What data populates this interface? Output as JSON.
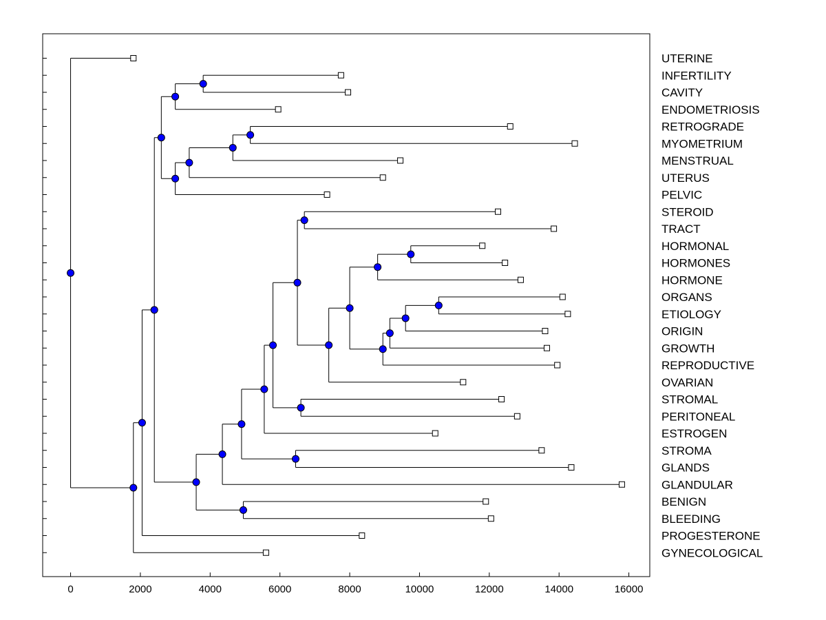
{
  "chart_data": {
    "type": "dendrogram",
    "xlim": [
      -800,
      16600
    ],
    "xticks": [
      0,
      2000,
      4000,
      6000,
      8000,
      10000,
      12000,
      14000,
      16000
    ],
    "colors": {
      "node": "#0000ff",
      "line": "#000000",
      "leaf": "#ffffff"
    },
    "leaves": [
      {
        "label": "UTERINE",
        "x": 1800
      },
      {
        "label": "INFERTILITY",
        "x": 7750
      },
      {
        "label": "CAVITY",
        "x": 7950
      },
      {
        "label": "ENDOMETRIOSIS",
        "x": 5950
      },
      {
        "label": "RETROGRADE",
        "x": 12600
      },
      {
        "label": "MYOMETRIUM",
        "x": 14450
      },
      {
        "label": "MENSTRUAL",
        "x": 9450
      },
      {
        "label": "UTERUS",
        "x": 8950
      },
      {
        "label": "PELVIC",
        "x": 7350
      },
      {
        "label": "STEROID",
        "x": 12250
      },
      {
        "label": "TRACT",
        "x": 13850
      },
      {
        "label": "HORMONAL",
        "x": 11800
      },
      {
        "label": "HORMONES",
        "x": 12450
      },
      {
        "label": "HORMONE",
        "x": 12900
      },
      {
        "label": "ORGANS",
        "x": 14100
      },
      {
        "label": "ETIOLOGY",
        "x": 14250
      },
      {
        "label": "ORIGIN",
        "x": 13600
      },
      {
        "label": "GROWTH",
        "x": 13650
      },
      {
        "label": "REPRODUCTIVE",
        "x": 13950
      },
      {
        "label": "OVARIAN",
        "x": 11250
      },
      {
        "label": "STROMAL",
        "x": 12350
      },
      {
        "label": "PERITONEAL",
        "x": 12800
      },
      {
        "label": "ESTROGEN",
        "x": 10450
      },
      {
        "label": "STROMA",
        "x": 13500
      },
      {
        "label": "GLANDS",
        "x": 14350
      },
      {
        "label": "GLANDULAR",
        "x": 15800
      },
      {
        "label": "BENIGN",
        "x": 11900
      },
      {
        "label": "BLEEDING",
        "x": 12050
      },
      {
        "label": "PROGESTERONE",
        "x": 8350
      },
      {
        "label": "GYNECOLOGICAL",
        "x": 5600
      }
    ],
    "merges": [
      {
        "id": "n1",
        "x": 3800,
        "children": [
          "L1",
          "L2"
        ]
      },
      {
        "id": "n2",
        "x": 3000,
        "children": [
          "n1",
          "L3"
        ]
      },
      {
        "id": "n3",
        "x": 5150,
        "children": [
          "L4",
          "L5"
        ]
      },
      {
        "id": "n4",
        "x": 4650,
        "children": [
          "n3",
          "L6"
        ]
      },
      {
        "id": "n5",
        "x": 3400,
        "children": [
          "n4",
          "L7"
        ]
      },
      {
        "id": "n6",
        "x": 3000,
        "children": [
          "n5",
          "L8"
        ]
      },
      {
        "id": "n7",
        "x": 2600,
        "children": [
          "n2",
          "n6"
        ]
      },
      {
        "id": "n8",
        "x": 6700,
        "children": [
          "L9",
          "L10"
        ]
      },
      {
        "id": "n9",
        "x": 9750,
        "children": [
          "L11",
          "L12"
        ]
      },
      {
        "id": "n10",
        "x": 8800,
        "children": [
          "n9",
          "L13"
        ]
      },
      {
        "id": "n11",
        "x": 10550,
        "children": [
          "L14",
          "L15"
        ]
      },
      {
        "id": "n12",
        "x": 9600,
        "children": [
          "n11",
          "L16"
        ]
      },
      {
        "id": "n13",
        "x": 9150,
        "children": [
          "n12",
          "L17"
        ]
      },
      {
        "id": "n14",
        "x": 8950,
        "children": [
          "n13",
          "L18"
        ]
      },
      {
        "id": "n15",
        "x": 8000,
        "children": [
          "n10",
          "n14"
        ]
      },
      {
        "id": "n16",
        "x": 7400,
        "children": [
          "n15",
          "L19"
        ]
      },
      {
        "id": "n17",
        "x": 6500,
        "children": [
          "n8",
          "n16"
        ]
      },
      {
        "id": "n18",
        "x": 6600,
        "children": [
          "L20",
          "L21"
        ]
      },
      {
        "id": "n19",
        "x": 5800,
        "children": [
          "n17",
          "n18"
        ]
      },
      {
        "id": "n20",
        "x": 5550,
        "children": [
          "n19",
          "L22"
        ]
      },
      {
        "id": "n21",
        "x": 6450,
        "children": [
          "L23",
          "L24"
        ]
      },
      {
        "id": "n22",
        "x": 4900,
        "children": [
          "n20",
          "n21"
        ]
      },
      {
        "id": "n23",
        "x": 4350,
        "children": [
          "n22",
          "L25"
        ]
      },
      {
        "id": "n24",
        "x": 4950,
        "children": [
          "L26",
          "L27"
        ]
      },
      {
        "id": "n25",
        "x": 3600,
        "children": [
          "n23",
          "n24"
        ]
      },
      {
        "id": "n26",
        "x": 2400,
        "children": [
          "n7",
          "n25"
        ]
      },
      {
        "id": "n27",
        "x": 2050,
        "children": [
          "n26",
          "L28"
        ]
      },
      {
        "id": "n28",
        "x": 1800,
        "children": [
          "n27",
          "L29"
        ]
      },
      {
        "id": "n29",
        "x": 0,
        "children": [
          "L0",
          "n28"
        ]
      }
    ]
  }
}
